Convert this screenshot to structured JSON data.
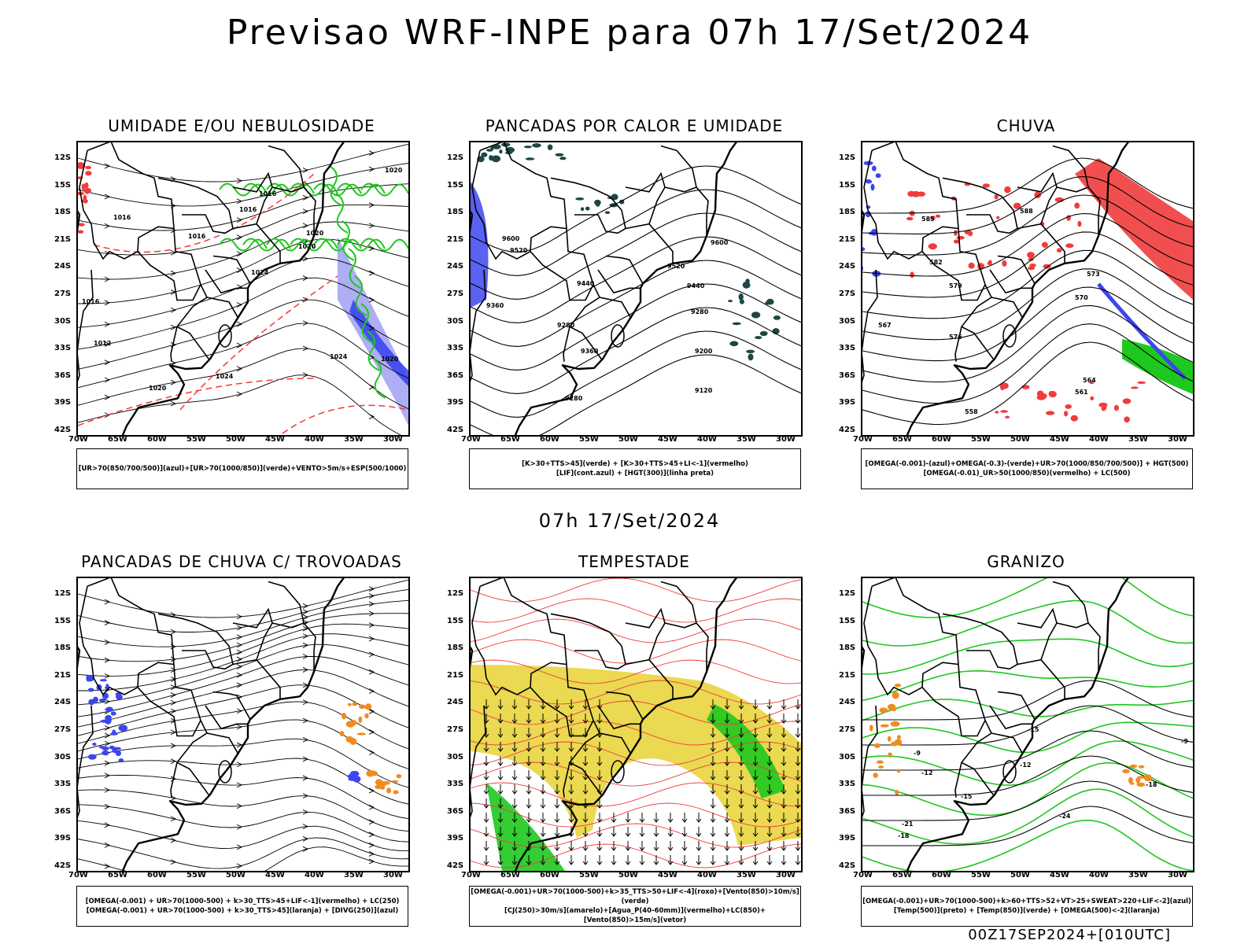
{
  "title": "Previsao WRF-INPE  para 07h 17/Set/2024",
  "mid_title": "07h 17/Set/2024",
  "footer": "00Z17SEP2024+[010UTC]",
  "lat_labels": [
    "12S",
    "15S",
    "18S",
    "21S",
    "24S",
    "27S",
    "30S",
    "33S",
    "36S",
    "39S",
    "42S"
  ],
  "lon_labels": [
    "70W",
    "65W",
    "60W",
    "55W",
    "50W",
    "45W",
    "40W",
    "35W",
    "30W"
  ],
  "colors": {
    "green": "#1ec81e",
    "red": "#f03c3c",
    "blue": "#3c46f0",
    "lavender": "#8c8cf0",
    "yellow": "#e6d232",
    "orange": "#f08c1e",
    "dark_teal": "#1e4646"
  },
  "panels": [
    {
      "id": "umidade",
      "title": "UMIDADE E/OU NEBULOSIDADE",
      "legend": [
        "[UR>70(850/700/500)](azul)+[UR>70(1000/850)](verde)+VENTO>5m/s+ESP(500/1000)"
      ],
      "contour_labels": [
        "1020",
        "1016",
        "1016",
        "1020",
        "1016",
        "1016",
        "1020",
        "1024",
        "1016",
        "1012",
        "1024",
        "1024",
        "1020",
        "1020"
      ]
    },
    {
      "id": "pancadas-calor",
      "title": "PANCADAS POR CALOR E UMIDADE",
      "legend": [
        "[K>30+TTS>45](verde)  +  [K>30+TTS>45+LI<-1](vermelho)",
        "[LIF](cont.azul)  +  [HGT(300)](linha preta)"
      ],
      "contour_labels": [
        "9600",
        "9600",
        "9520",
        "9520",
        "9440",
        "9440",
        "9360",
        "9360",
        "9280",
        "9280",
        "9200",
        "9120",
        "9280"
      ]
    },
    {
      "id": "chuva",
      "title": "CHUVA",
      "legend": [
        "[OMEGA(-0.001)-(azul)+OMEGA(-0.3)-(verde)+UR>70(1000/850/700/500)]  +  HGT(500)",
        "[OMEGA(-0.01)_UR>50(1000/850)(vermelho)  +  LC(500)"
      ],
      "contour_labels": [
        "588",
        "585",
        "582",
        "579",
        "576",
        "573",
        "570",
        "567",
        "564",
        "561",
        "558"
      ]
    },
    {
      "id": "pancadas-trovoadas",
      "title": "PANCADAS DE CHUVA C/ TROVOADAS",
      "legend": [
        "[OMEGA(-0.001)  +  UR>70(1000-500)  +  k>30_TTS>45+LIF<-1](vermelho)  +  LC(250)",
        "[OMEGA(-0.001)  +  UR>70(1000-500)  +  k>30_TTS>45](laranja)  +  [DIVG(250)](azul)"
      ],
      "contour_labels": []
    },
    {
      "id": "tempestade",
      "title": "TEMPESTADE",
      "legend": [
        "[OMEGA(-0.001)+UR>70(1000-500)+k>35_TTS>50+LIF<-4](roxo)+[Vento(850)>10m/s](verde)",
        "[CJ(250)>30m/s](amarelo)+[Agua_P(40-60mm)](vermelho)+LC(850)+[Vento(850)>15m/s](vetor)"
      ],
      "contour_labels": []
    },
    {
      "id": "granizo",
      "title": "GRANIZO",
      "legend": [
        "[OMEGA(-0.001)+UR>70(1000-500)+k>60+TTS>52+VT>25+SWEAT>220+LIF<-2](azul)",
        "[Temp(500)](preto)  +  [Temp(850)](verde)  +  [OMEGA(500)<-2](laranja)"
      ],
      "contour_labels": [
        "-9",
        "-12",
        "-12",
        "-15",
        "-15",
        "-18",
        "-18",
        "-21",
        "-24",
        "-9"
      ]
    }
  ]
}
